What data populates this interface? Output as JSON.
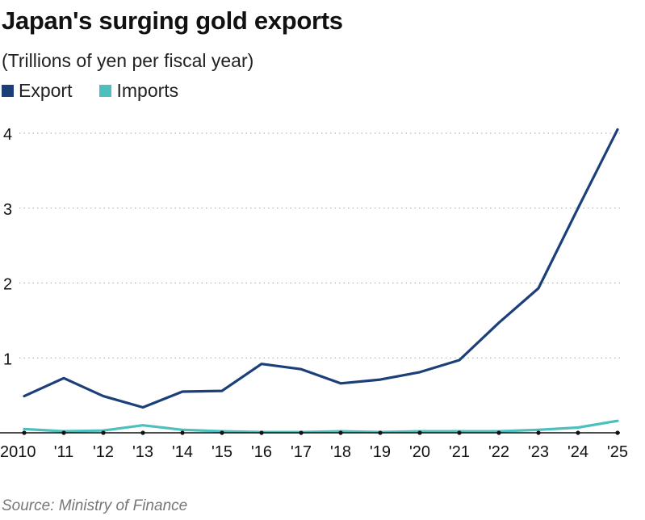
{
  "chart_data": {
    "type": "line",
    "title": "Japan's surging gold exports",
    "subtitle": "(Trillions of yen per fiscal year)",
    "source": "Source: Ministry of Finance",
    "x": [
      "2010",
      "'11",
      "'12",
      "'13",
      "'14",
      "'15",
      "'16",
      "'17",
      "'18",
      "'19",
      "'20",
      "'21",
      "'22",
      "'23",
      "'24",
      "'25"
    ],
    "yticks": [
      "1",
      "2",
      "3",
      "4"
    ],
    "ylim": [
      0,
      4.3
    ],
    "grid": true,
    "legend_position": "top-left",
    "series": [
      {
        "name": "Export",
        "color": "#1b3f78",
        "values": [
          0.49,
          0.73,
          0.49,
          0.34,
          0.55,
          0.56,
          0.92,
          0.85,
          0.66,
          0.71,
          0.81,
          0.97,
          1.47,
          1.93,
          3.0,
          4.05
        ]
      },
      {
        "name": "Imports",
        "color": "#4dbfbc",
        "values": [
          0.05,
          0.02,
          0.03,
          0.1,
          0.04,
          0.02,
          0.01,
          0.01,
          0.02,
          0.01,
          0.02,
          0.02,
          0.02,
          0.04,
          0.07,
          0.16
        ]
      }
    ]
  }
}
